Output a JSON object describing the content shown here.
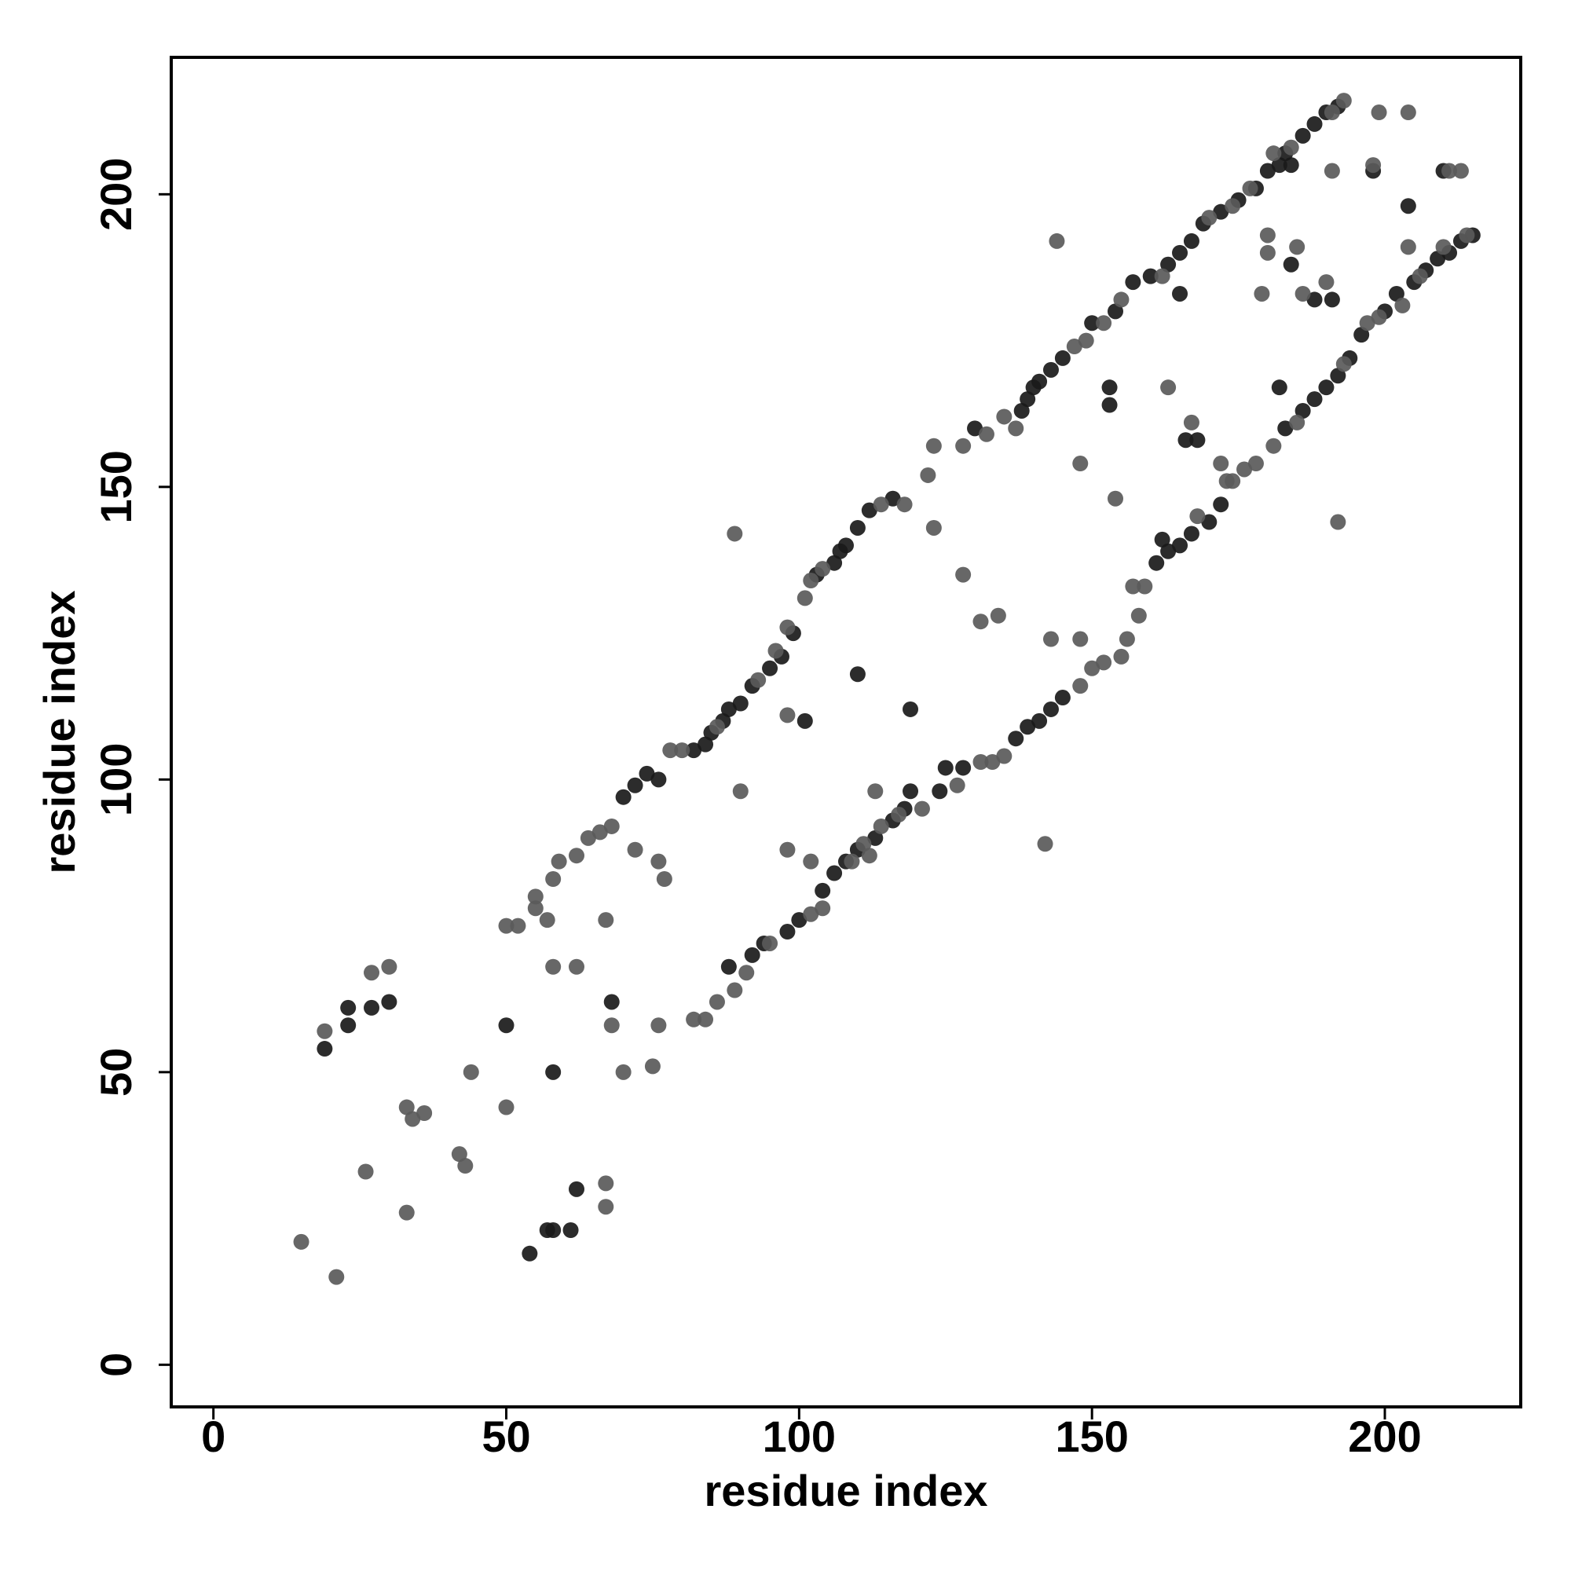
{
  "chart_data": {
    "type": "scatter",
    "xlabel": "residue index",
    "ylabel": "residue index",
    "xlim": [
      -7.2,
      223.2
    ],
    "ylim": [
      -7.2,
      223.4
    ],
    "xticks": [
      0,
      50,
      100,
      150,
      200
    ],
    "yticks": [
      0,
      50,
      100,
      150,
      200
    ],
    "series": [
      {
        "color": "#1a1a1a",
        "x": [
          70,
          72,
          74,
          76,
          82,
          84,
          85,
          87,
          88,
          90,
          92,
          95,
          97,
          99,
          103,
          106,
          107,
          108,
          110,
          112,
          116,
          130,
          138,
          139,
          140,
          141,
          143,
          145,
          150,
          154,
          157,
          160,
          163,
          165,
          167,
          169,
          172,
          175,
          178,
          180,
          183,
          186,
          188,
          190,
          192,
          88,
          92,
          94,
          98,
          100,
          104,
          106,
          108,
          110,
          113,
          116,
          118,
          124,
          128,
          137,
          139,
          141,
          143,
          145,
          161,
          163,
          165,
          167,
          170,
          172,
          183,
          186,
          188,
          190,
          192,
          194,
          196,
          200,
          202,
          205,
          207,
          209,
          211,
          213,
          215,
          19,
          23,
          23,
          27,
          30,
          50,
          58,
          54,
          57,
          58,
          61,
          62,
          68,
          101,
          110,
          119,
          119,
          125,
          153,
          153,
          166,
          168,
          182,
          188,
          191,
          198,
          204,
          210,
          184,
          184,
          162,
          165,
          182
        ],
        "values": [
          97,
          99,
          101,
          100,
          105,
          106,
          108,
          110,
          112,
          113,
          116,
          119,
          121,
          125,
          135,
          137,
          139,
          140,
          143,
          146,
          148,
          160,
          163,
          165,
          167,
          168,
          170,
          172,
          178,
          180,
          185,
          186,
          188,
          190,
          192,
          195,
          197,
          199,
          201,
          204,
          207,
          210,
          212,
          214,
          215,
          68,
          70,
          72,
          74,
          76,
          81,
          84,
          86,
          88,
          90,
          93,
          95,
          98,
          102,
          107,
          109,
          110,
          112,
          114,
          137,
          139,
          140,
          142,
          144,
          147,
          160,
          163,
          165,
          167,
          169,
          172,
          176,
          180,
          183,
          185,
          187,
          189,
          190,
          192,
          193,
          54,
          58,
          61,
          61,
          62,
          58,
          50,
          19,
          23,
          23,
          23,
          30,
          62,
          110,
          118,
          112,
          98,
          102,
          167,
          164,
          158,
          158,
          167,
          182,
          182,
          204,
          198,
          204,
          188,
          205,
          141,
          183,
          205
        ]
      },
      {
        "color": "#5a5a5a",
        "x": [
          50,
          52,
          55,
          58,
          59,
          62,
          64,
          66,
          68,
          78,
          80,
          86,
          93,
          96,
          98,
          101,
          102,
          104,
          114,
          118,
          122,
          123,
          128,
          132,
          135,
          137,
          147,
          149,
          152,
          155,
          162,
          170,
          174,
          177,
          181,
          184,
          191,
          193,
          82,
          84,
          86,
          89,
          91,
          95,
          102,
          104,
          109,
          111,
          114,
          117,
          121,
          127,
          131,
          133,
          135,
          148,
          150,
          152,
          155,
          158,
          159,
          168,
          174,
          176,
          178,
          181,
          185,
          193,
          197,
          199,
          203,
          206,
          210,
          214,
          15,
          21,
          19,
          26,
          27,
          30,
          33,
          33,
          34,
          36,
          42,
          43,
          44,
          50,
          55,
          57,
          58,
          62,
          67,
          67,
          68,
          70,
          72,
          75,
          76,
          76,
          77,
          67,
          89,
          90,
          98,
          98,
          113,
          112,
          102,
          123,
          128,
          131,
          134,
          142,
          143,
          144,
          148,
          148,
          154,
          156,
          157,
          163,
          167,
          172,
          173,
          179,
          180,
          180,
          185,
          186,
          190,
          191,
          192,
          198,
          204,
          204,
          211,
          213,
          199
        ],
        "values": [
          75,
          75,
          80,
          83,
          86,
          87,
          90,
          91,
          92,
          105,
          105,
          109,
          117,
          122,
          126,
          131,
          134,
          136,
          147,
          147,
          152,
          157,
          157,
          159,
          162,
          160,
          174,
          175,
          178,
          182,
          186,
          196,
          198,
          201,
          207,
          208,
          214,
          216,
          59,
          59,
          62,
          64,
          67,
          72,
          77,
          78,
          86,
          89,
          92,
          94,
          95,
          99,
          103,
          103,
          104,
          116,
          119,
          120,
          121,
          128,
          133,
          145,
          151,
          153,
          154,
          157,
          161,
          171,
          178,
          179,
          181,
          186,
          191,
          193,
          21,
          15,
          57,
          33,
          67,
          68,
          26,
          44,
          42,
          43,
          36,
          34,
          50,
          44,
          78,
          76,
          68,
          68,
          27,
          31,
          58,
          50,
          88,
          51,
          58,
          86,
          83,
          76,
          142,
          98,
          88,
          111,
          98,
          87,
          86,
          143,
          135,
          127,
          128,
          89,
          124,
          192,
          154,
          124,
          148,
          124,
          133,
          167,
          161,
          154,
          151,
          183,
          193,
          190,
          191,
          183,
          185,
          204,
          144,
          205,
          191,
          214,
          204,
          204,
          214
        ]
      }
    ]
  }
}
